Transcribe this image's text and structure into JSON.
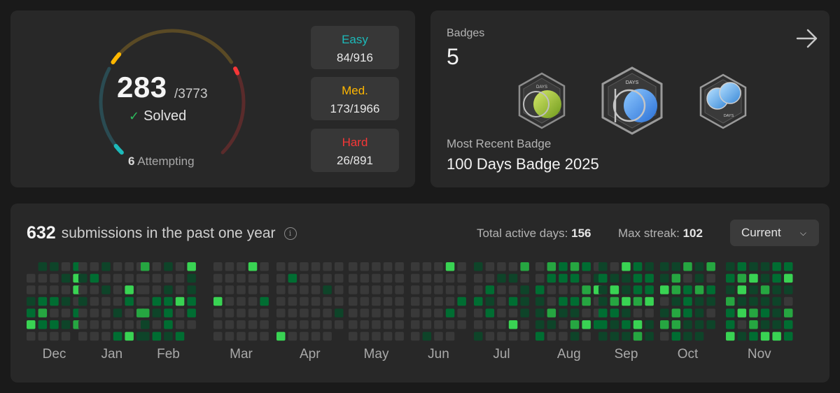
{
  "progress": {
    "solved": "283",
    "total": "/3773",
    "solved_label": "Solved",
    "attempting_count": "6",
    "attempting_label": "Attempting",
    "ring_segments": {
      "easy_color": "#2a4b52",
      "easy_accent": "#1cbaba",
      "medium_color": "#5a4a25",
      "medium_accent": "#ffb700",
      "hard_color": "#5a2b2b",
      "hard_accent": "#f63737"
    },
    "difficulties": [
      {
        "name": "Easy",
        "value": "84/916",
        "color": "#1cbaba"
      },
      {
        "name": "Med.",
        "value": "173/1966",
        "color": "#ffb700"
      },
      {
        "name": "Hard",
        "value": "26/891",
        "color": "#f63737"
      }
    ]
  },
  "badges": {
    "title": "Badges",
    "count": "5",
    "items": [
      {
        "name": "50-days-badge-icon",
        "label": "DAYS"
      },
      {
        "name": "100-days-badge-icon",
        "label": "DAYS"
      },
      {
        "name": "200-days-badge-icon",
        "label": "DAYS"
      }
    ],
    "recent_label": "Most Recent Badge",
    "recent_name": "100 Days Badge 2025"
  },
  "activity": {
    "submissions_count": "632",
    "submissions_text": "submissions in the past one year",
    "active_days_label": "Total active days:",
    "active_days_value": "156",
    "max_streak_label": "Max streak:",
    "max_streak_value": "102",
    "range_select": "Current",
    "months": [
      "Dec",
      "Jan",
      "Feb",
      "Mar",
      "Apr",
      "May",
      "Jun",
      "Jul",
      "Aug",
      "Sep",
      "Oct",
      "Nov"
    ],
    "colors": {
      "empty": "#393939",
      "l1": "#0e4429",
      "l2": "#006d32",
      "l3": "#26a641",
      "l4": "#39d353"
    }
  }
}
